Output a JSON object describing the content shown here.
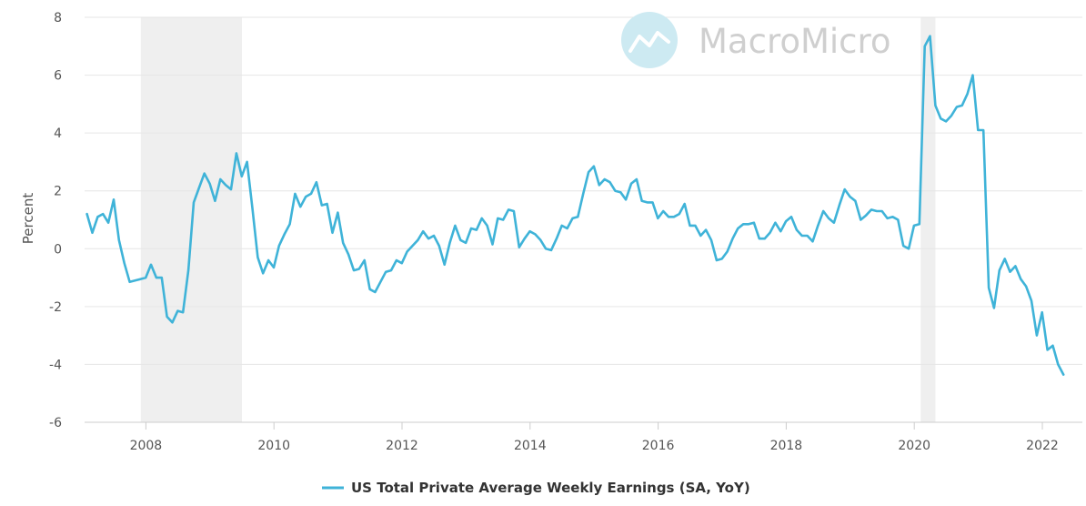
{
  "chart_data": {
    "type": "line",
    "title": "",
    "xlabel": "",
    "ylabel": "Percent",
    "xlim": [
      2007.0,
      2022.5
    ],
    "ylim": [
      -6,
      8
    ],
    "yticks": [
      8,
      6,
      4,
      2,
      0,
      -2,
      -4,
      -6
    ],
    "xticks": [
      2008,
      2010,
      2012,
      2014,
      2016,
      2018,
      2020,
      2022
    ],
    "grid": true,
    "legend_position": "bottom-center",
    "watermark": "MacroMicro",
    "colors": {
      "series": "#3fb3d8",
      "recession_band": "#efefef",
      "grid": "#e6e6e6"
    },
    "recession_bands": [
      [
        2007.92,
        2009.5
      ],
      [
        2020.1,
        2020.33
      ]
    ],
    "series": [
      {
        "name": "US Total Private Average Weekly Earnings (SA, YoY)",
        "x_start": 2007.08,
        "x_step": 0.08333,
        "values": [
          1.2,
          0.55,
          1.1,
          1.2,
          0.9,
          1.7,
          0.3,
          -0.5,
          -1.15,
          -1.1,
          -1.05,
          -1.0,
          -0.55,
          -1.0,
          -1.0,
          -2.35,
          -2.55,
          -2.15,
          -2.2,
          -0.75,
          1.6,
          2.1,
          2.6,
          2.25,
          1.65,
          2.4,
          2.2,
          2.05,
          3.3,
          2.5,
          3.0,
          1.4,
          -0.3,
          -0.85,
          -0.4,
          -0.65,
          0.1,
          0.5,
          0.85,
          1.9,
          1.45,
          1.8,
          1.9,
          2.3,
          1.5,
          1.55,
          0.55,
          1.25,
          0.2,
          -0.2,
          -0.75,
          -0.7,
          -0.4,
          -1.4,
          -1.5,
          -1.15,
          -0.8,
          -0.75,
          -0.4,
          -0.5,
          -0.1,
          0.1,
          0.3,
          0.6,
          0.35,
          0.45,
          0.1,
          -0.55,
          0.2,
          0.8,
          0.3,
          0.2,
          0.7,
          0.65,
          1.05,
          0.8,
          0.15,
          1.05,
          1.0,
          1.35,
          1.3,
          0.05,
          0.35,
          0.6,
          0.5,
          0.3,
          0.0,
          -0.05,
          0.35,
          0.8,
          0.7,
          1.05,
          1.1,
          1.9,
          2.65,
          2.85,
          2.2,
          2.4,
          2.3,
          2.0,
          1.95,
          1.7,
          2.25,
          2.4,
          1.65,
          1.6,
          1.6,
          1.05,
          1.3,
          1.1,
          1.1,
          1.2,
          1.55,
          0.8,
          0.8,
          0.45,
          0.65,
          0.3,
          -0.4,
          -0.35,
          -0.1,
          0.35,
          0.7,
          0.85,
          0.85,
          0.9,
          0.35,
          0.35,
          0.55,
          0.9,
          0.6,
          0.95,
          1.1,
          0.65,
          0.45,
          0.45,
          0.25,
          0.8,
          1.3,
          1.05,
          0.9,
          1.5,
          2.05,
          1.8,
          1.65,
          1.0,
          1.15,
          1.35,
          1.3,
          1.3,
          1.05,
          1.1,
          1.0,
          0.1,
          0.0,
          0.8,
          0.85,
          7.0,
          7.35,
          4.95,
          4.5,
          4.4,
          4.6,
          4.9,
          4.95,
          5.35,
          6.0,
          4.1,
          4.1,
          -1.35,
          -2.05,
          -0.75,
          -0.35,
          -0.8,
          -0.6,
          -1.05,
          -1.3,
          -1.8,
          -3.0,
          -2.2,
          -3.5,
          -3.35,
          -4.0,
          -4.35
        ]
      }
    ]
  }
}
